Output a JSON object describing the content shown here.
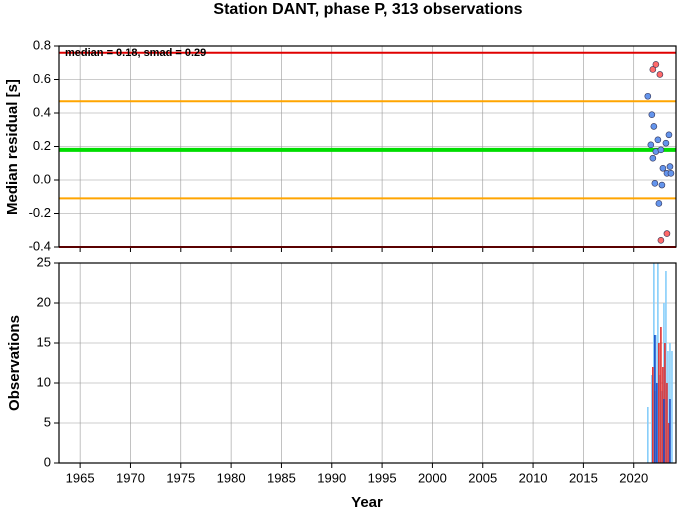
{
  "chart_data": [
    {
      "type": "scatter",
      "title": "Station DANT, phase P, 313 observations",
      "ylabel": "Median residual [s]",
      "annotation": "median = 0.18, smad = 0.29",
      "xlim": [
        1962.9,
        2024.2
      ],
      "ylim": [
        -0.4,
        0.8
      ],
      "yticks": [
        0.8,
        0.6,
        0.4,
        0.2,
        {
          "value": 0,
          "label": "0.0"
        },
        -0.2,
        -0.4
      ],
      "grid": true,
      "hlines": [
        {
          "value": 0.76,
          "color": "#e00000"
        },
        {
          "value": 0.47,
          "color": "#ffa500"
        },
        {
          "value": 0.18,
          "color": "#00dd00"
        },
        {
          "value": -0.11,
          "color": "#ffa500"
        },
        {
          "value": -0.4,
          "color": "#e00000"
        }
      ],
      "series": [
        {
          "color": "#6495ed",
          "x": [
            2021.4,
            2021.8,
            2022.0,
            2021.7,
            2022.4,
            2022.2,
            2021.9,
            2022.7,
            2023.2,
            2023.5,
            2022.9,
            2023.3,
            2023.7,
            2023.6,
            2022.1,
            2022.8,
            2022.5
          ],
          "values": [
            0.5,
            0.39,
            0.32,
            0.21,
            0.24,
            0.17,
            0.13,
            0.18,
            0.22,
            0.27,
            0.07,
            0.04,
            0.04,
            0.08,
            -0.02,
            -0.03,
            -0.14
          ]
        },
        {
          "color": "#ff6a6a",
          "x": [
            2021.9,
            2022.2,
            2022.6,
            2022.7,
            2023.3
          ],
          "values": [
            0.66,
            0.69,
            0.63,
            -0.36,
            -0.32
          ]
        }
      ]
    },
    {
      "type": "bar",
      "xlabel": "Year",
      "ylabel": "Observations",
      "xlim": [
        1962.9,
        2024.2
      ],
      "ylim": [
        0,
        25
      ],
      "xticks": [
        1965,
        1970,
        1975,
        1980,
        1985,
        1990,
        1995,
        2000,
        2005,
        2010,
        2015,
        2020
      ],
      "yticks": [
        0,
        5,
        10,
        15,
        20,
        25
      ],
      "grid": true,
      "series": [
        {
          "color": "#87cefa",
          "x": [
            2021.4,
            2021.8,
            2022.0,
            2022.2,
            2022.4,
            2022.6,
            2022.8,
            2023.0,
            2023.2,
            2023.4,
            2023.6,
            2023.8
          ],
          "values": [
            7,
            11,
            25,
            16,
            25,
            11,
            9,
            20,
            24,
            14,
            15,
            14
          ]
        },
        {
          "color": "#e03030",
          "x": [
            2021.9,
            2022.1,
            2022.5,
            2022.7,
            2022.9,
            2023.1,
            2023.3,
            2023.5
          ],
          "values": [
            12,
            9,
            15,
            17,
            12,
            15,
            10,
            5
          ]
        },
        {
          "color": "#1e50c8",
          "x": [
            2022.1,
            2022.3,
            2023.0,
            2023.6
          ],
          "values": [
            16,
            10,
            8,
            8
          ]
        }
      ]
    }
  ]
}
